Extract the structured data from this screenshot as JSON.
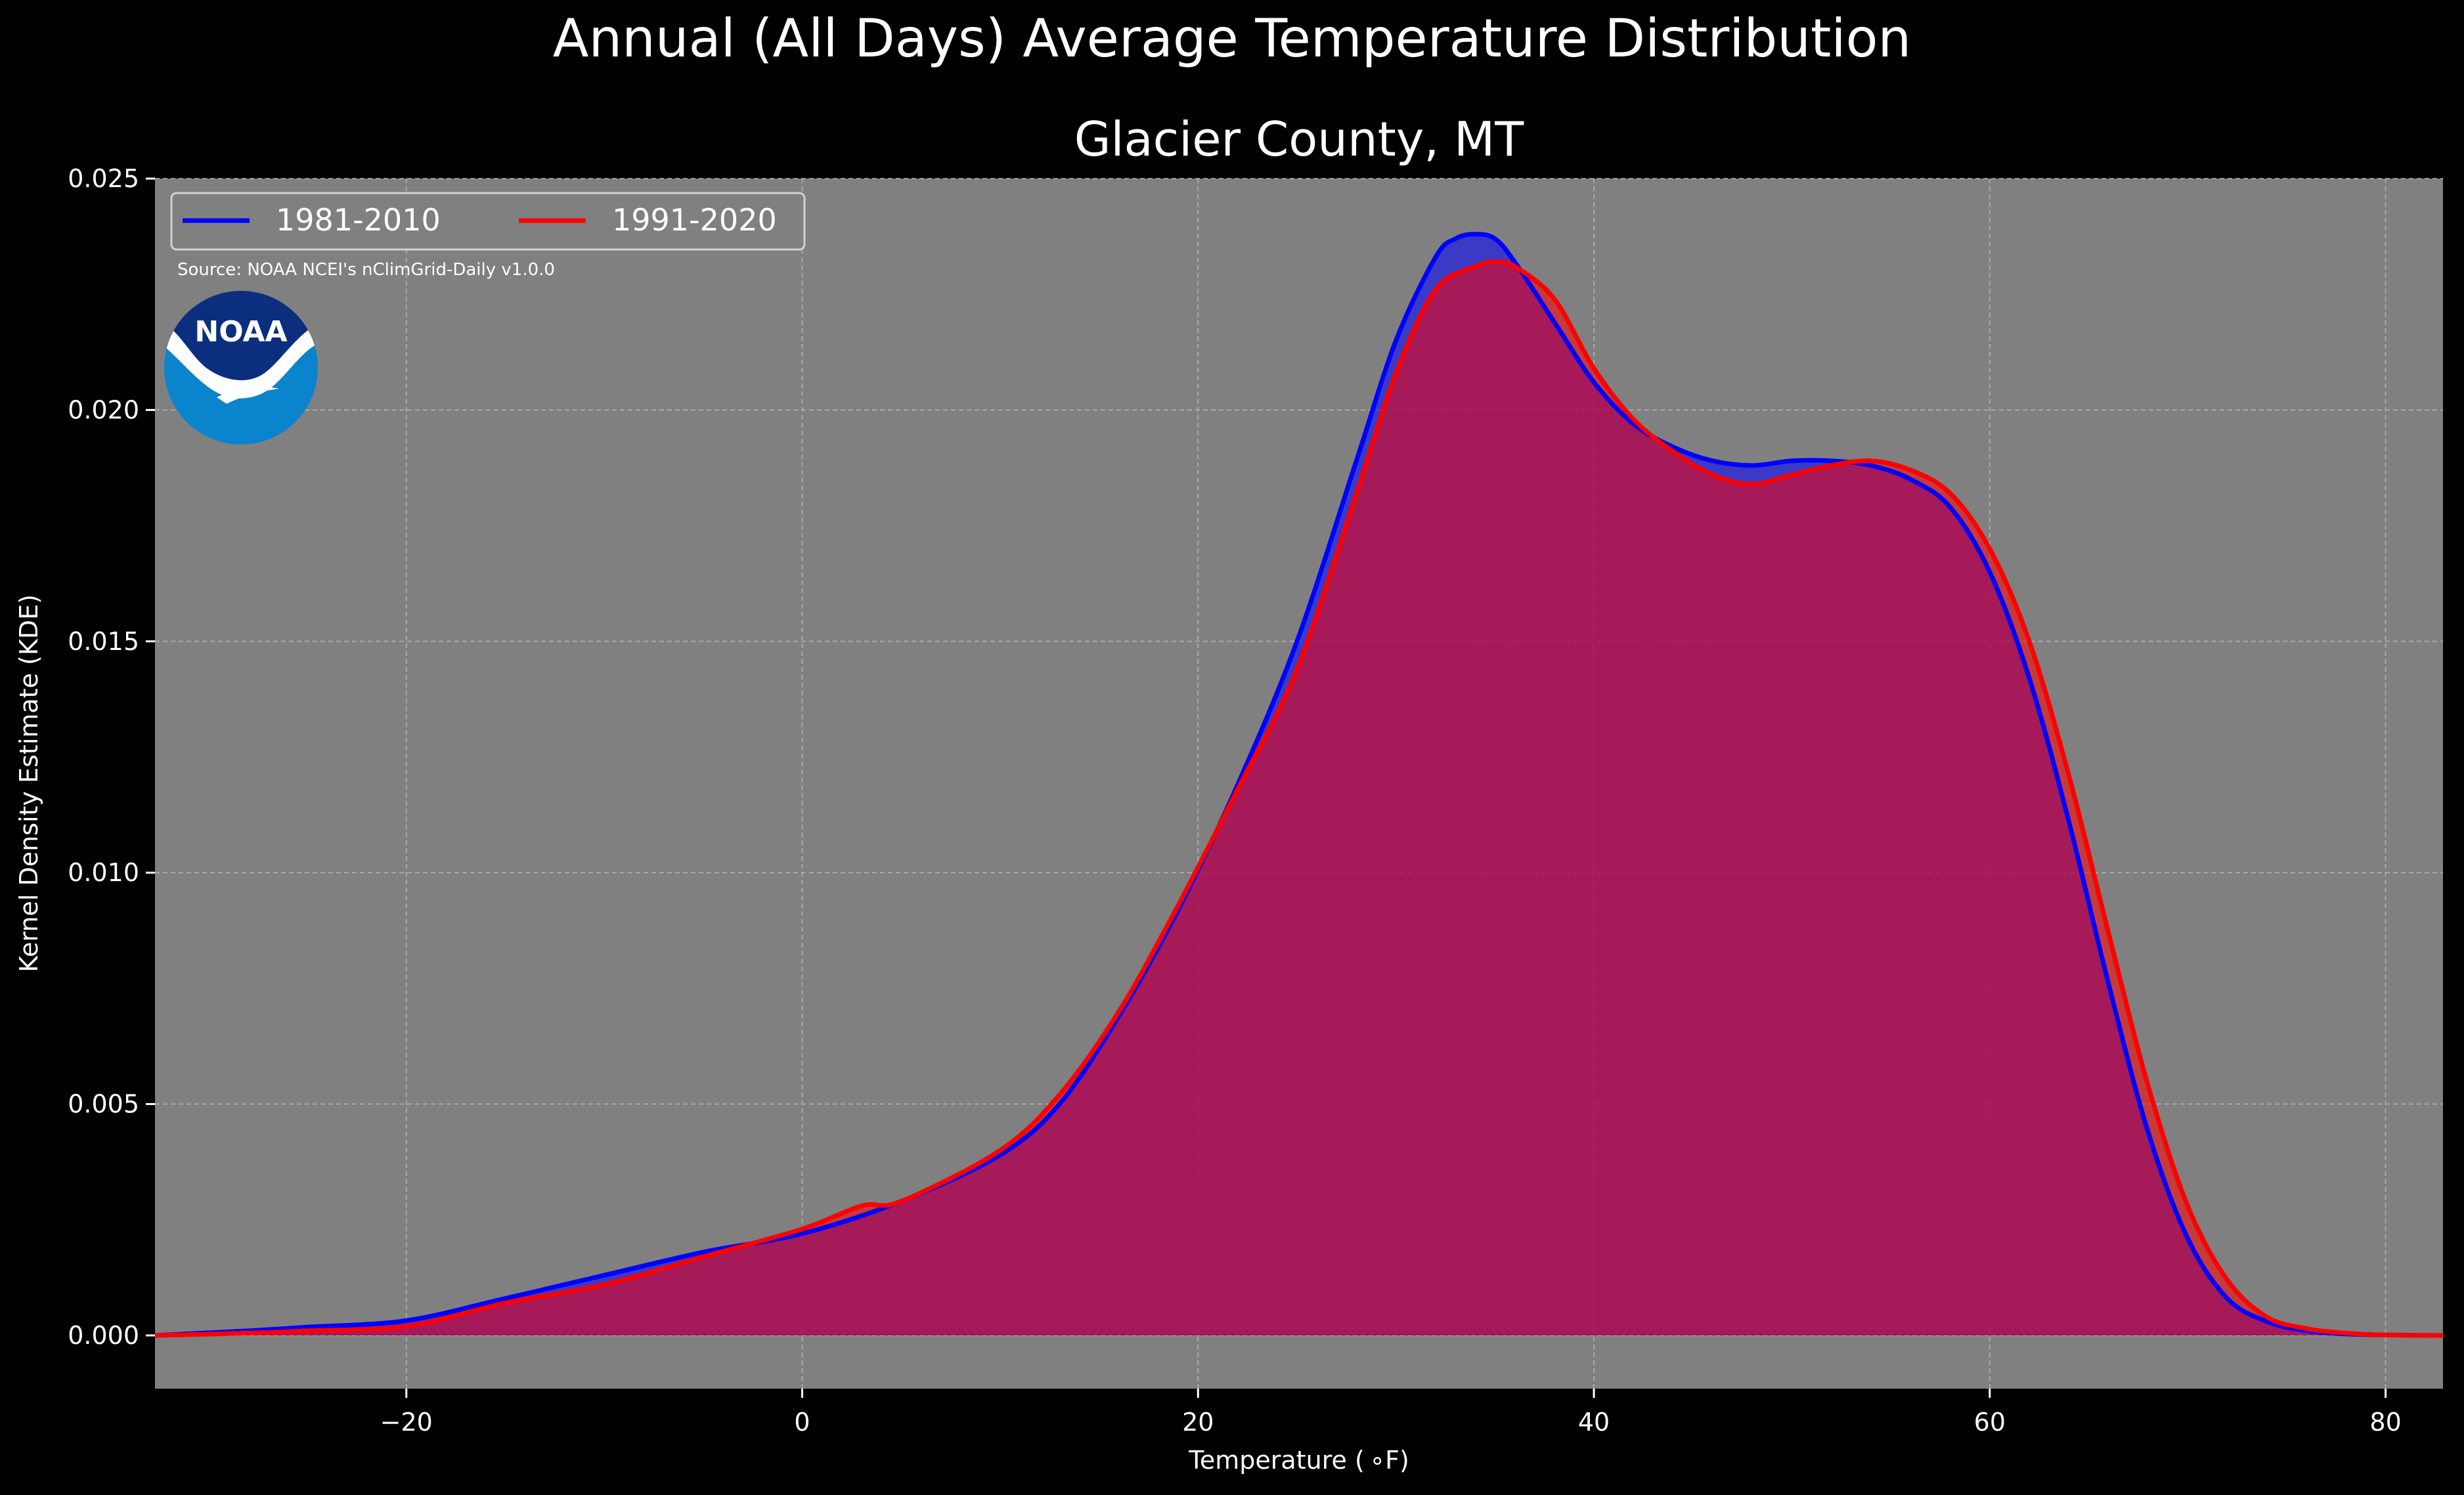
{
  "chart_data": {
    "type": "area",
    "suptitle": "Annual (All Days) Average Temperature Distribution",
    "title": "Glacier County, MT",
    "xlabel": "Temperature ( ∘F)",
    "ylabel": "Kernel Density Estimate (KDE)",
    "source_note": "Source: NOAA NCEI's nClimGrid-Daily v1.0.0",
    "logo_text": "NOAA",
    "xlim": [
      -32.7,
      82.9
    ],
    "ylim": [
      -0.00115,
      0.025
    ],
    "x_ticks": [
      -20,
      0,
      20,
      40,
      60,
      80
    ],
    "x_tick_labels": [
      "−20",
      "0",
      "20",
      "40",
      "60",
      "80"
    ],
    "y_ticks": [
      0.0,
      0.005,
      0.01,
      0.015,
      0.02,
      0.025
    ],
    "y_tick_labels": [
      "0.000",
      "0.005",
      "0.010",
      "0.015",
      "0.020",
      "0.025"
    ],
    "grid": true,
    "legend_position": "top-left",
    "colors": {
      "figure_background": "#000000",
      "plot_background": "#808080",
      "grid": "#b3b3b3"
    },
    "series": [
      {
        "name": "1981-2010",
        "color": "#0000ff",
        "x": [
          -32.7,
          -28,
          -25,
          -20,
          -15,
          -10,
          -5,
          0,
          5,
          10,
          13,
          16,
          19,
          22,
          25,
          28,
          30,
          32,
          33,
          34,
          35,
          36,
          38,
          40,
          42,
          44,
          46,
          48,
          50,
          52,
          54,
          56,
          58,
          60,
          62,
          64,
          66,
          68,
          70,
          72,
          74,
          76,
          78,
          80,
          82.9
        ],
        "y": [
          0.0,
          0.0001,
          0.00018,
          0.00032,
          0.0008,
          0.0013,
          0.0018,
          0.0022,
          0.0029,
          0.0039,
          0.005,
          0.0069,
          0.0092,
          0.0119,
          0.015,
          0.0189,
          0.0215,
          0.0233,
          0.0237,
          0.0238,
          0.0237,
          0.0232,
          0.0219,
          0.0206,
          0.0197,
          0.0192,
          0.0189,
          0.0188,
          0.0189,
          0.0189,
          0.0188,
          0.0185,
          0.0179,
          0.0165,
          0.0142,
          0.0111,
          0.0076,
          0.0044,
          0.0021,
          0.0008,
          0.0003,
          0.0001,
          3e-05,
          1e-05,
          0.0
        ]
      },
      {
        "name": "1991-2020",
        "color": "#ff0000",
        "x": [
          -32.7,
          -28,
          -25,
          -20,
          -15,
          -10,
          -5,
          0,
          3,
          5,
          10,
          13,
          16,
          19,
          22,
          25,
          28,
          30,
          32,
          34,
          35,
          36,
          38,
          40,
          42,
          44,
          46,
          48,
          50,
          52,
          54,
          56,
          58,
          60,
          62,
          64,
          66,
          68,
          70,
          72,
          74,
          76,
          78,
          80,
          82.9
        ],
        "y": [
          0.0,
          5e-05,
          0.0001,
          0.0002,
          0.0007,
          0.0011,
          0.0017,
          0.0023,
          0.0028,
          0.0029,
          0.004,
          0.0052,
          0.007,
          0.0093,
          0.0118,
          0.0144,
          0.0182,
          0.0208,
          0.0226,
          0.0231,
          0.0232,
          0.0231,
          0.0224,
          0.0209,
          0.0198,
          0.0191,
          0.0186,
          0.0184,
          0.0186,
          0.0188,
          0.0189,
          0.0187,
          0.0182,
          0.017,
          0.015,
          0.0121,
          0.0087,
          0.0054,
          0.0028,
          0.0012,
          0.0004,
          0.00015,
          5e-05,
          1e-05,
          0.0
        ]
      }
    ]
  }
}
